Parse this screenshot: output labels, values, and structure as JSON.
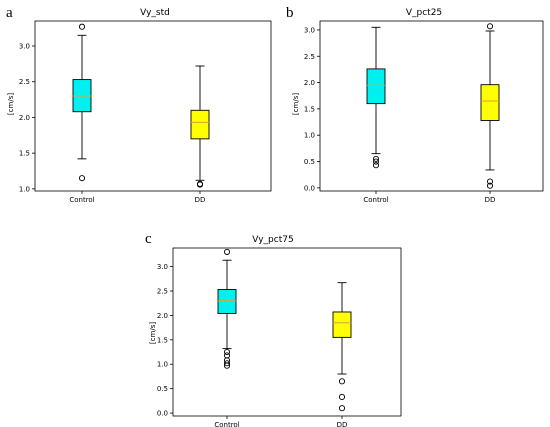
{
  "colors": {
    "control_box": "#00f0f0",
    "dd_box": "#ffff00",
    "median": "#e0a030"
  },
  "panels": [
    {
      "letter": "a",
      "title": "Vy_std",
      "ylabel": "[cm/s]"
    },
    {
      "letter": "b",
      "title": "V_pct25",
      "ylabel": "[cm/s]"
    },
    {
      "letter": "c",
      "title": "Vy_pct75",
      "ylabel": "[cm/s]"
    }
  ],
  "chart_data": [
    {
      "type": "box",
      "title": "Vy_std",
      "ylabel": "[cm/s]",
      "categories": [
        "Control",
        "DD"
      ],
      "ylim": [
        0.97,
        3.35
      ],
      "yticks": [
        "1.0",
        "1.5",
        "2.0",
        "2.5",
        "3.0"
      ],
      "boxes": [
        {
          "name": "Control",
          "whisker_low": 1.42,
          "q1": 2.08,
          "median": 2.3,
          "q3": 2.53,
          "whisker_high": 3.15,
          "fliers": [
            3.27,
            1.15
          ]
        },
        {
          "name": "DD",
          "whisker_low": 1.12,
          "q1": 1.7,
          "median": 1.93,
          "q3": 2.1,
          "whisker_high": 2.72,
          "fliers": [
            1.07,
            1.06
          ]
        }
      ]
    },
    {
      "type": "box",
      "title": "V_pct25",
      "ylabel": "[cm/s]",
      "categories": [
        "Control",
        "DD"
      ],
      "ylim": [
        -0.06,
        3.17
      ],
      "yticks": [
        "0.0",
        "0.5",
        "1.0",
        "1.5",
        "2.0",
        "2.5",
        "3.0"
      ],
      "boxes": [
        {
          "name": "Control",
          "whisker_low": 0.65,
          "q1": 1.6,
          "median": 1.95,
          "q3": 2.26,
          "whisker_high": 3.05,
          "fliers": [
            0.55,
            0.5,
            0.43
          ]
        },
        {
          "name": "DD",
          "whisker_low": 0.34,
          "q1": 1.28,
          "median": 1.65,
          "q3": 1.96,
          "whisker_high": 2.98,
          "fliers": [
            3.07,
            0.12,
            0.04
          ]
        }
      ]
    },
    {
      "type": "box",
      "title": "Vy_pct75",
      "ylabel": "[cm/s]",
      "categories": [
        "Control",
        "DD"
      ],
      "ylim": [
        -0.06,
        3.38
      ],
      "yticks": [
        "0.0",
        "0.5",
        "1.0",
        "1.5",
        "2.0",
        "2.5",
        "3.0"
      ],
      "boxes": [
        {
          "name": "Control",
          "whisker_low": 1.32,
          "q1": 2.04,
          "median": 2.3,
          "q3": 2.53,
          "whisker_high": 3.13,
          "fliers": [
            3.3,
            1.25,
            1.18,
            1.08,
            1.02,
            0.97
          ]
        },
        {
          "name": "DD",
          "whisker_low": 0.8,
          "q1": 1.55,
          "median": 1.85,
          "q3": 2.07,
          "whisker_high": 2.67,
          "fliers": [
            0.65,
            0.33,
            0.1
          ]
        }
      ]
    }
  ]
}
